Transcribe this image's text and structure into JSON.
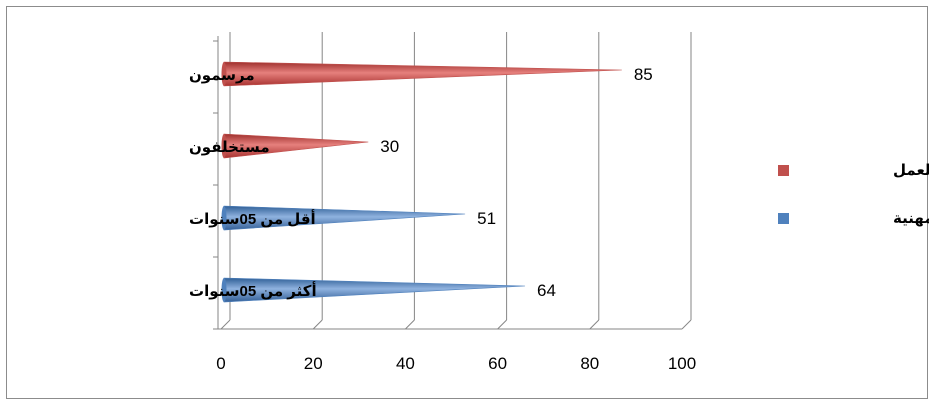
{
  "chart_data": {
    "type": "bar",
    "orientation": "horizontal",
    "style": "3d-cone",
    "categories": [
      "مرسمون",
      "مستخلفون",
      "أقل من 05سنوات",
      "أكثر من 05سنوات"
    ],
    "series": [
      {
        "name": "علاقة العمل",
        "color": "#c0504d",
        "values": [
          85,
          30,
          null,
          null
        ]
      },
      {
        "name": "الخبرة المهنية",
        "color": "#4f81bd",
        "values": [
          null,
          null,
          51,
          64
        ]
      }
    ],
    "xlim": [
      0,
      100
    ],
    "x_ticks": [
      "0",
      "20",
      "40",
      "60",
      "80",
      "100"
    ],
    "grid": true,
    "legend_position": "right"
  }
}
